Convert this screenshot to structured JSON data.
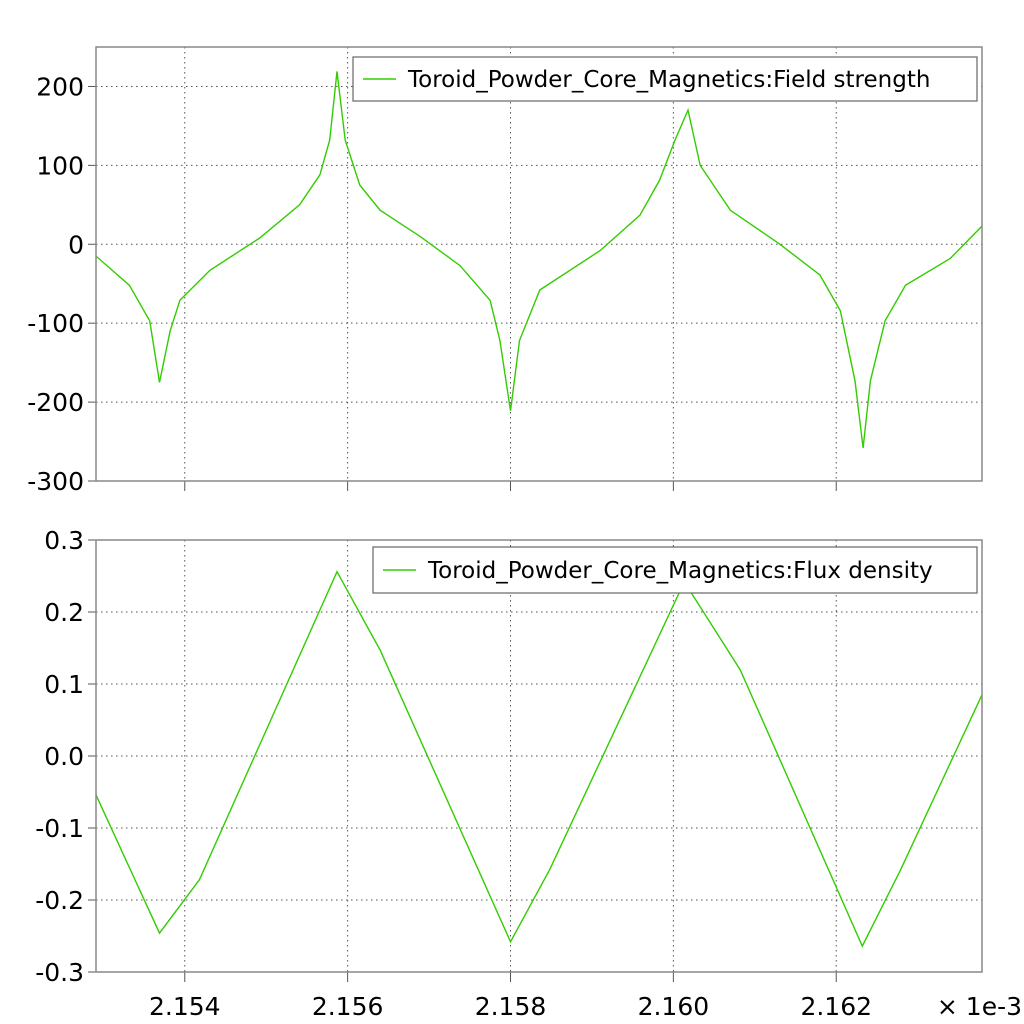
{
  "chart_data": [
    {
      "type": "line",
      "title": "",
      "xlabel": "",
      "ylabel": "",
      "x_multiplier_label": "× 1e-3",
      "xlim": [
        2.15291,
        2.16379
      ],
      "ylim": [
        -300,
        250
      ],
      "grid": true,
      "legend_position": "top-right",
      "yticks": [
        200,
        100,
        0,
        -100,
        -200,
        -300
      ],
      "ytick_labels": [
        "200",
        "100",
        "0",
        "-100",
        "-200",
        "-300"
      ],
      "xticks": [
        2.154,
        2.156,
        2.158,
        2.16,
        2.162
      ],
      "series": [
        {
          "name": "Toroid_Powder_Core_Magnetics:Field strength",
          "color": "#33cc00",
          "x": [
            2.15291,
            2.15332,
            2.15357,
            2.15369,
            2.15382,
            2.15394,
            2.15431,
            2.15492,
            2.15541,
            2.15566,
            2.15578,
            2.15587,
            2.15597,
            2.15615,
            2.1564,
            2.15689,
            2.15738,
            2.15775,
            2.15787,
            2.158,
            2.15811,
            2.15836,
            2.1591,
            2.15959,
            2.15983,
            2.16002,
            2.16018,
            2.16033,
            2.1607,
            2.16131,
            2.1618,
            2.16205,
            2.16223,
            2.16233,
            2.16242,
            2.1626,
            2.16285,
            2.1634,
            2.16379
          ],
          "y": [
            -15,
            -52,
            -97,
            -175,
            -110,
            -71,
            -33,
            8,
            50,
            88,
            132,
            219,
            132,
            75,
            43,
            10,
            -27,
            -71,
            -122,
            -211,
            -122,
            -58,
            -8,
            37,
            81,
            132,
            170,
            100,
            43,
            0,
            -39,
            -84,
            -173,
            -258,
            -173,
            -97,
            -52,
            -18,
            23
          ]
        }
      ]
    },
    {
      "type": "line",
      "title": "",
      "xlabel": "",
      "ylabel": "",
      "x_multiplier_label": "× 1e-3",
      "xlim": [
        2.15291,
        2.16379
      ],
      "ylim": [
        -0.3,
        0.3
      ],
      "grid": true,
      "legend_position": "top-right",
      "yticks": [
        0.3,
        0.2,
        0.1,
        0.0,
        -0.1,
        -0.2,
        -0.3
      ],
      "ytick_labels": [
        "0.3",
        "0.2",
        "0.1",
        "0.0",
        "-0.1",
        "-0.2",
        "-0.3"
      ],
      "xticks": [
        2.154,
        2.156,
        2.158,
        2.16,
        2.162
      ],
      "xtick_labels": [
        "2.154",
        "2.156",
        "2.158",
        "2.160",
        "2.162"
      ],
      "series": [
        {
          "name": "Toroid_Powder_Core_Magnetics:Flux density",
          "color": "#33cc00",
          "x": [
            2.15291,
            2.15369,
            2.15418,
            2.15587,
            2.1564,
            2.158,
            2.15848,
            2.16011,
            2.1602,
            2.16082,
            2.16232,
            2.16279,
            2.16379
          ],
          "y": [
            -0.054,
            -0.246,
            -0.172,
            0.256,
            0.147,
            -0.258,
            -0.158,
            0.236,
            0.23,
            0.12,
            -0.264,
            -0.158,
            0.085
          ]
        }
      ]
    }
  ]
}
